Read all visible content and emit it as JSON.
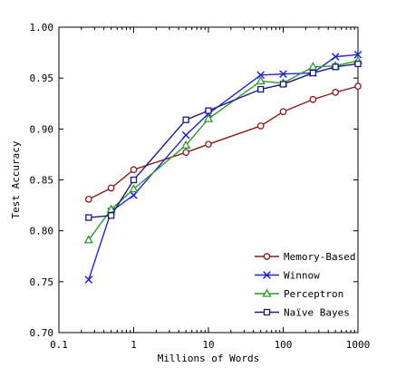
{
  "chart_data": {
    "type": "line",
    "title": "",
    "xlabel": "Millions of Words",
    "ylabel": "Test Accuracy",
    "xscale": "log",
    "xlim": [
      0.1,
      1000
    ],
    "ylim": [
      0.7,
      1.0
    ],
    "x_ticks": [
      "0.1",
      "1",
      "10",
      "100",
      "1000"
    ],
    "y_ticks": [
      "0.70",
      "0.75",
      "0.80",
      "0.85",
      "0.90",
      "0.95",
      "1.00"
    ],
    "grid": false,
    "legend_position": "bottom-right",
    "x": [
      0.25,
      0.5,
      1,
      5,
      10,
      50,
      100,
      250,
      500,
      1000
    ],
    "series": [
      {
        "name": "Memory-Based",
        "color": "#8b1a1a",
        "marker": "circle",
        "values": [
          0.831,
          0.842,
          0.86,
          0.877,
          0.885,
          0.903,
          0.917,
          0.929,
          0.936,
          0.942
        ]
      },
      {
        "name": "Winnow",
        "color": "#2222dd",
        "marker": "x",
        "values": [
          0.752,
          0.819,
          0.835,
          0.894,
          0.915,
          0.953,
          0.954,
          0.955,
          0.971,
          0.973
        ]
      },
      {
        "name": "Perceptron",
        "color": "#2a9a2a",
        "marker": "triangle",
        "values": [
          0.791,
          0.821,
          0.841,
          0.884,
          0.91,
          0.947,
          0.945,
          0.961,
          0.962,
          0.967
        ]
      },
      {
        "name": "Naïve Bayes",
        "color": "#1a1a80",
        "marker": "square",
        "values": [
          0.813,
          0.815,
          0.85,
          0.909,
          0.918,
          0.939,
          0.944,
          0.955,
          0.961,
          0.964
        ]
      }
    ]
  }
}
